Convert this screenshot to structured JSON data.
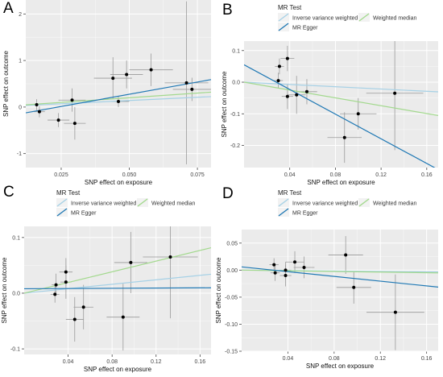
{
  "legend_title": "MR Test",
  "legend_entries": [
    {
      "label": "Inverse variance weighted",
      "color": "#a6d1e6"
    },
    {
      "label": "Weighted median",
      "color": "#a3d98e"
    },
    {
      "label": "MR Egger",
      "color": "#1f78b4"
    }
  ],
  "xlabel": "SNP effect on exposure",
  "ylabel": "SNP effect on outcome",
  "colors": {
    "panel_bg": "#ebebeb",
    "grid": "#ffffff",
    "point": "#000000",
    "errorbar": "#9a9a9a"
  },
  "chart_data": [
    {
      "type": "scatter",
      "panel_label": "A",
      "xlim": [
        0.012,
        0.08
      ],
      "ylim": [
        -1.3,
        2.3
      ],
      "xticks": [
        0.025,
        0.05,
        0.075
      ],
      "xtick_labels": [
        "0.025",
        "0.050",
        "0.075"
      ],
      "yticks": [
        -1,
        0,
        1,
        2
      ],
      "ytick_labels": [
        "-1",
        "0",
        "1",
        "2"
      ],
      "points": [
        {
          "x": 0.016,
          "y": 0.05,
          "xerr": 0.002,
          "yerr": 0.12
        },
        {
          "x": 0.017,
          "y": -0.1,
          "xerr": 0.002,
          "yerr": 0.12
        },
        {
          "x": 0.024,
          "y": -0.28,
          "xerr": 0.004,
          "yerr": 0.15
        },
        {
          "x": 0.029,
          "y": 0.15,
          "xerr": 0.005,
          "yerr": 0.25
        },
        {
          "x": 0.03,
          "y": -0.35,
          "xerr": 0.004,
          "yerr": 0.35
        },
        {
          "x": 0.044,
          "y": 0.62,
          "xerr": 0.007,
          "yerr": 0.45
        },
        {
          "x": 0.046,
          "y": 0.12,
          "xerr": 0.004,
          "yerr": 0.12
        },
        {
          "x": 0.049,
          "y": 0.7,
          "xerr": 0.006,
          "yerr": 0.3
        },
        {
          "x": 0.058,
          "y": 0.8,
          "xerr": 0.008,
          "yerr": 0.35
        },
        {
          "x": 0.071,
          "y": 0.52,
          "xerr": 0.008,
          "yerr": 1.75
        },
        {
          "x": 0.073,
          "y": 0.38,
          "xerr": 0.007,
          "yerr": 0.25
        }
      ],
      "lines": [
        {
          "method": "Inverse variance weighted",
          "slope": 2.8,
          "intercept": 0
        },
        {
          "method": "Weighted median",
          "slope": 4.0,
          "intercept": 0
        },
        {
          "method": "MR Egger",
          "slope": 10.5,
          "intercept": -0.25
        }
      ]
    },
    {
      "type": "scatter",
      "panel_label": "B",
      "xlim": [
        0.0,
        0.17
      ],
      "ylim": [
        -0.27,
        0.13
      ],
      "xticks": [
        0.04,
        0.08,
        0.12,
        0.16
      ],
      "xtick_labels": [
        "0.04",
        "0.08",
        "0.12",
        "0.16"
      ],
      "yticks": [
        -0.2,
        -0.1,
        0.0,
        0.1
      ],
      "ytick_labels": [
        "-0.2",
        "-0.1",
        "0.0",
        "0.1"
      ],
      "points": [
        {
          "x": 0.03,
          "y": 0.005,
          "xerr": 0.004,
          "yerr": 0.025
        },
        {
          "x": 0.031,
          "y": 0.05,
          "xerr": 0.004,
          "yerr": 0.025
        },
        {
          "x": 0.038,
          "y": 0.075,
          "xerr": 0.006,
          "yerr": 0.04
        },
        {
          "x": 0.038,
          "y": -0.045,
          "xerr": 0.005,
          "yerr": 0.04
        },
        {
          "x": 0.046,
          "y": -0.04,
          "xerr": 0.008,
          "yerr": 0.06
        },
        {
          "x": 0.055,
          "y": -0.03,
          "xerr": 0.009,
          "yerr": 0.04
        },
        {
          "x": 0.088,
          "y": -0.175,
          "xerr": 0.015,
          "yerr": 0.08
        },
        {
          "x": 0.1,
          "y": -0.1,
          "xerr": 0.016,
          "yerr": 0.05
        },
        {
          "x": 0.132,
          "y": -0.035,
          "xerr": 0.025,
          "yerr": 0.18
        }
      ],
      "lines": [
        {
          "method": "Inverse variance weighted",
          "slope": -0.18,
          "intercept": 0
        },
        {
          "method": "Weighted median",
          "slope": -0.62,
          "intercept": 0
        },
        {
          "method": "MR Egger",
          "slope": -1.95,
          "intercept": 0.055
        }
      ]
    },
    {
      "type": "scatter",
      "panel_label": "C",
      "xlim": [
        0.0,
        0.17
      ],
      "ylim": [
        -0.11,
        0.12
      ],
      "xticks": [
        0.04,
        0.08,
        0.12,
        0.16
      ],
      "xtick_labels": [
        "0.04",
        "0.08",
        "0.12",
        "0.16"
      ],
      "yticks": [
        -0.1,
        0.0,
        0.1
      ],
      "ytick_labels": [
        "-0.1",
        "0.0",
        "0.1"
      ],
      "points": [
        {
          "x": 0.028,
          "y": -0.002,
          "xerr": 0.004,
          "yerr": 0.015
        },
        {
          "x": 0.029,
          "y": 0.015,
          "xerr": 0.004,
          "yerr": 0.02
        },
        {
          "x": 0.038,
          "y": 0.02,
          "xerr": 0.005,
          "yerr": 0.03
        },
        {
          "x": 0.038,
          "y": 0.038,
          "xerr": 0.006,
          "yerr": 0.025
        },
        {
          "x": 0.046,
          "y": -0.047,
          "xerr": 0.008,
          "yerr": 0.04
        },
        {
          "x": 0.054,
          "y": -0.025,
          "xerr": 0.009,
          "yerr": 0.04
        },
        {
          "x": 0.09,
          "y": -0.043,
          "xerr": 0.015,
          "yerr": 0.06
        },
        {
          "x": 0.097,
          "y": 0.055,
          "xerr": 0.015,
          "yerr": 0.055
        },
        {
          "x": 0.133,
          "y": 0.065,
          "xerr": 0.025,
          "yerr": 0.11
        }
      ],
      "lines": [
        {
          "method": "Inverse variance weighted",
          "slope": 0.2,
          "intercept": 0
        },
        {
          "method": "Weighted median",
          "slope": 0.48,
          "intercept": 0
        },
        {
          "method": "MR Egger",
          "slope": 0.01,
          "intercept": 0.008
        }
      ]
    },
    {
      "type": "scatter",
      "panel_label": "D",
      "xlim": [
        0.0,
        0.17
      ],
      "ylim": [
        -0.15,
        0.075
      ],
      "xticks": [
        0.04,
        0.08,
        0.12,
        0.16
      ],
      "xtick_labels": [
        "0.04",
        "0.08",
        "0.12",
        "0.16"
      ],
      "yticks": [
        -0.15,
        -0.1,
        -0.05,
        0.0,
        0.05
      ],
      "ytick_labels": [
        "-0.15",
        "-0.10",
        "-0.05",
        "0.00",
        "0.05"
      ],
      "points": [
        {
          "x": 0.028,
          "y": 0.01,
          "xerr": 0.004,
          "yerr": 0.012
        },
        {
          "x": 0.029,
          "y": -0.005,
          "xerr": 0.004,
          "yerr": 0.015
        },
        {
          "x": 0.038,
          "y": -0.01,
          "xerr": 0.005,
          "yerr": 0.02
        },
        {
          "x": 0.038,
          "y": 0.0,
          "xerr": 0.005,
          "yerr": 0.015
        },
        {
          "x": 0.046,
          "y": 0.015,
          "xerr": 0.008,
          "yerr": 0.02
        },
        {
          "x": 0.054,
          "y": 0.005,
          "xerr": 0.009,
          "yerr": 0.02
        },
        {
          "x": 0.09,
          "y": 0.028,
          "xerr": 0.015,
          "yerr": 0.035
        },
        {
          "x": 0.097,
          "y": -0.032,
          "xerr": 0.015,
          "yerr": 0.03
        },
        {
          "x": 0.133,
          "y": -0.078,
          "xerr": 0.025,
          "yerr": 0.07
        }
      ],
      "lines": [
        {
          "method": "Inverse variance weighted",
          "slope": -0.02,
          "intercept": 0
        },
        {
          "method": "Weighted median",
          "slope": -0.03,
          "intercept": 0
        },
        {
          "method": "MR Egger",
          "slope": -0.22,
          "intercept": 0.006
        }
      ]
    }
  ]
}
